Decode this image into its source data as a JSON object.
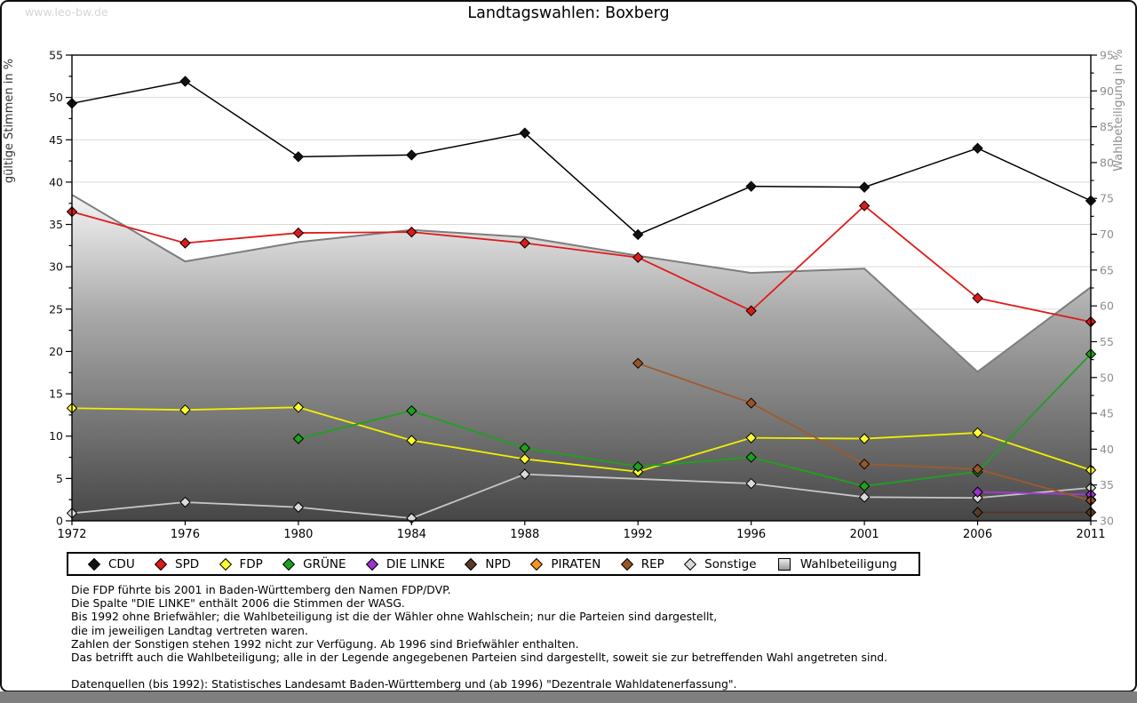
{
  "page": {
    "watermark": "www.leo-bw.de",
    "title": "Landtagswahlen: Boxberg"
  },
  "chart_data": {
    "type": "line",
    "title": "Landtagswahlen: Boxberg",
    "categories": [
      "1972",
      "1976",
      "1980",
      "1984",
      "1988",
      "1992",
      "1996",
      "2001",
      "2006",
      "2011"
    ],
    "left_axis": {
      "label": "gültige Stimmen in %",
      "min": 0,
      "max": 55,
      "tick_step": 5,
      "minor_step": 2.5,
      "grid": true
    },
    "right_axis": {
      "label": "Wahlbeteiligung in %",
      "min": 30,
      "max": 95,
      "tick_step": 5,
      "minor_step": 2.5
    },
    "series": [
      {
        "name": "CDU",
        "line_color": "#000000",
        "marker_color": "#111111",
        "line_width": 1.5,
        "values": [
          49.3,
          51.9,
          43.0,
          43.2,
          45.8,
          33.8,
          39.5,
          39.4,
          44.0,
          37.8
        ]
      },
      {
        "name": "SPD",
        "line_color": "#e01b1b",
        "marker_color": "#dc1a1a",
        "line_width": 1.8,
        "values": [
          36.5,
          32.8,
          34.0,
          34.1,
          32.8,
          31.1,
          24.8,
          37.2,
          26.3,
          23.5
        ]
      },
      {
        "name": "FDP",
        "line_color": "#f0f000",
        "marker_color": "#ffff30",
        "line_width": 1.8,
        "values": [
          13.3,
          13.1,
          13.4,
          9.5,
          7.3,
          5.8,
          9.8,
          9.7,
          10.4,
          6.0
        ]
      },
      {
        "name": "GRÜNE",
        "line_color": "#1ea11e",
        "marker_color": "#1ea11e",
        "line_width": 1.8,
        "values": [
          null,
          null,
          9.7,
          13.0,
          8.6,
          6.4,
          7.5,
          4.1,
          5.8,
          19.7
        ]
      },
      {
        "name": "DIE LINKE",
        "line_color": "#a23bd6",
        "marker_color": "#9933cc",
        "line_width": 1.8,
        "values": [
          null,
          null,
          null,
          null,
          null,
          null,
          null,
          null,
          3.4,
          3.1
        ]
      },
      {
        "name": "NPD",
        "line_color": "#553622",
        "marker_color": "#5a3a26",
        "line_width": 1.8,
        "values": [
          null,
          null,
          null,
          null,
          null,
          null,
          null,
          null,
          1.0,
          1.0
        ]
      },
      {
        "name": "PIRATEN",
        "line_color": "#f08010",
        "marker_color": "#f5941e",
        "line_width": 1.8,
        "values": [
          null,
          null,
          null,
          null,
          null,
          null,
          null,
          null,
          null,
          2.5
        ]
      },
      {
        "name": "REP",
        "line_color": "#a05a2a",
        "marker_color": "#9a5526",
        "line_width": 1.8,
        "values": [
          null,
          null,
          null,
          null,
          null,
          18.6,
          13.9,
          6.7,
          6.1,
          2.4
        ]
      },
      {
        "name": "Sonstige",
        "line_color": "#c6c6c6",
        "marker_color": "#dadada",
        "line_width": 1.8,
        "values": [
          0.9,
          2.2,
          1.6,
          0.3,
          5.5,
          null,
          4.4,
          2.8,
          2.7,
          3.9
        ]
      }
    ],
    "turnout_series": {
      "name": "Wahlbeteiligung",
      "axis": "right",
      "line_color": "#7d7d7d",
      "line_width": 2,
      "area_gradient": [
        "#f6f6f6",
        "#a8a8a8",
        "#464646"
      ],
      "values": [
        75.5,
        66.2,
        68.9,
        70.6,
        69.6,
        67.0,
        64.6,
        65.2,
        50.8,
        62.6
      ]
    },
    "draw_order": [
      "Sonstige",
      "FDP",
      "GRÜNE",
      "SPD",
      "CDU",
      "PIRATEN",
      "DIE LINKE",
      "NPD",
      "REP"
    ],
    "grid_color": "#d9d9d9",
    "right_label_color": "#8f8f8f"
  },
  "legend": {
    "items": [
      {
        "label": "CDU",
        "glyph": "diamond",
        "color": "#111111"
      },
      {
        "label": "SPD",
        "glyph": "diamond",
        "color": "#dc1a1a"
      },
      {
        "label": "FDP",
        "glyph": "diamond",
        "color": "#ffff30"
      },
      {
        "label": "GRÜNE",
        "glyph": "diamond",
        "color": "#1ea11e"
      },
      {
        "label": "DIE LINKE",
        "glyph": "diamond",
        "color": "#9933cc"
      },
      {
        "label": "NPD",
        "glyph": "diamond",
        "color": "#5a3a26"
      },
      {
        "label": "PIRATEN",
        "glyph": "diamond",
        "color": "#f5941e"
      },
      {
        "label": "REP",
        "glyph": "diamond",
        "color": "#9a5526"
      },
      {
        "label": "Sonstige",
        "glyph": "diamond",
        "color": "#dadada"
      },
      {
        "label": "Wahlbeteiligung",
        "glyph": "square",
        "color": "#c0c0c0"
      }
    ]
  },
  "footnotes": [
    "Die FDP führte bis 2001 in Baden-Württemberg den Namen FDP/DVP.",
    "Die Spalte \"DIE LINKE\" enthält 2006 die Stimmen der WASG.",
    "Bis 1992 ohne Briefwähler; die Wahlbeteiligung ist die der Wähler ohne Wahlschein; nur die Parteien sind dargestellt,",
    "die im jeweiligen Landtag vertreten waren.",
    "Zahlen der Sonstigen stehen 1992 nicht zur Verfügung. Ab 1996 sind Briefwähler enthalten.",
    "Das betrifft auch die Wahlbeteiligung; alle in der Legende angegebenen Parteien sind dargestellt, soweit sie zur betreffenden Wahl angetreten sind.",
    "",
    "Datenquellen (bis 1992): Statistisches Landesamt Baden-Württemberg und (ab 1996) \"Dezentrale Wahldatenerfassung\"."
  ]
}
